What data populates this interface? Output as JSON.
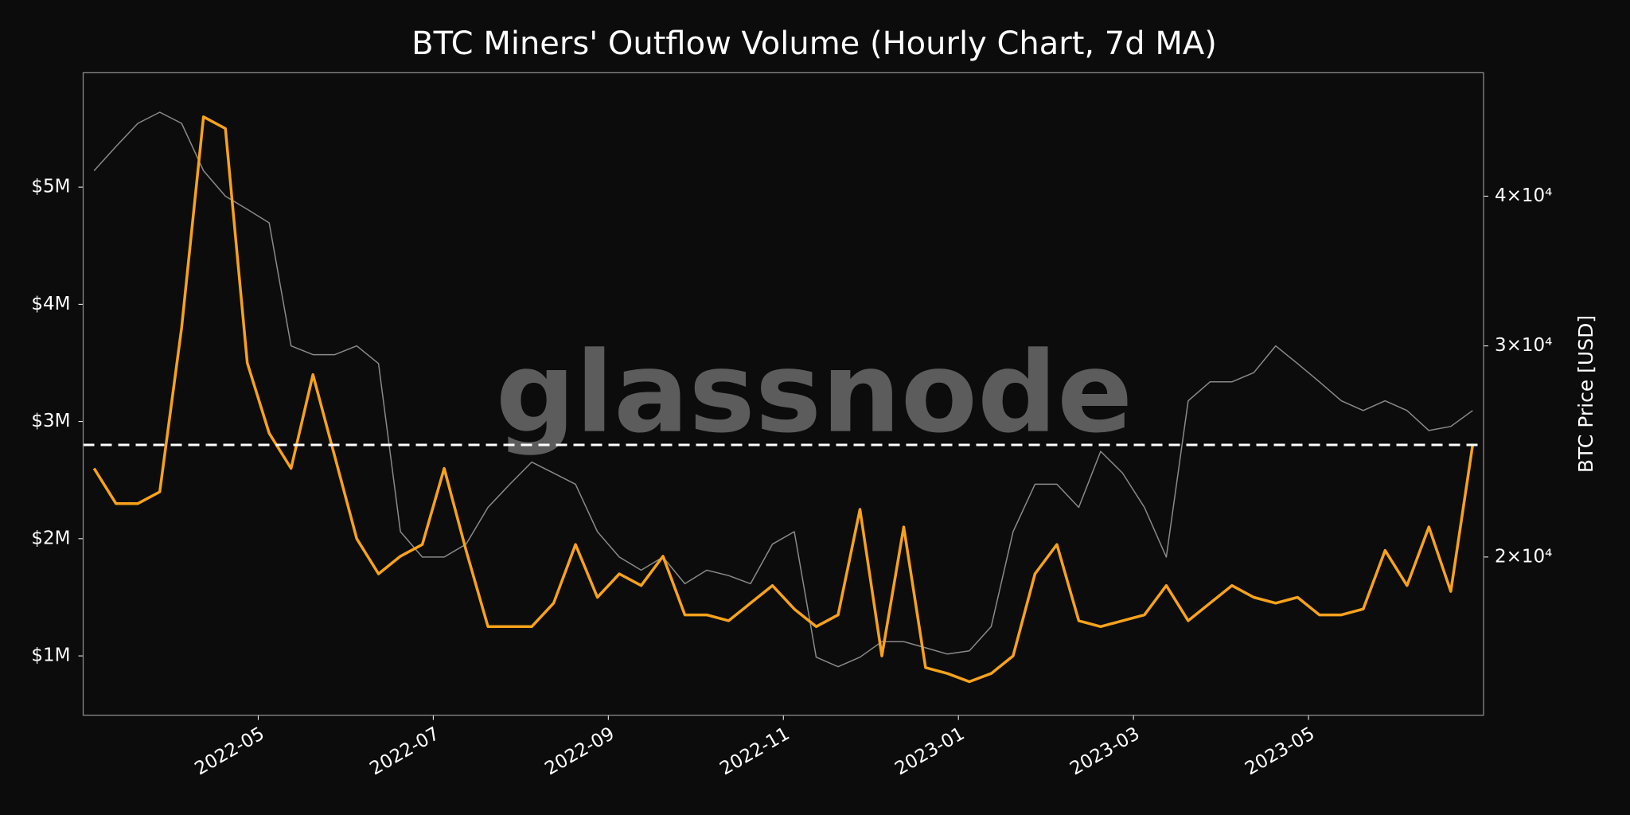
{
  "chart_data": {
    "type": "line",
    "title": "BTC Miners' Outflow Volume (Hourly Chart, 7d MA)",
    "y2label": "BTC Price [USD]",
    "watermark": "glassnode",
    "x": [
      "2022-03",
      "2022-03",
      "2022-03",
      "2022-03",
      "2022-04",
      "2022-04",
      "2022-04",
      "2022-04",
      "2022-05",
      "2022-05",
      "2022-05",
      "2022-05",
      "2022-06",
      "2022-06",
      "2022-06",
      "2022-06",
      "2022-07",
      "2022-07",
      "2022-07",
      "2022-07",
      "2022-08",
      "2022-08",
      "2022-08",
      "2022-08",
      "2022-09",
      "2022-09",
      "2022-09",
      "2022-09",
      "2022-10",
      "2022-10",
      "2022-10",
      "2022-10",
      "2022-11",
      "2022-11",
      "2022-11",
      "2022-11",
      "2022-12",
      "2022-12",
      "2022-12",
      "2022-12",
      "2023-01",
      "2023-01",
      "2023-01",
      "2023-01",
      "2023-02",
      "2023-02",
      "2023-02",
      "2023-02",
      "2023-03",
      "2023-03",
      "2023-03",
      "2023-03",
      "2023-04",
      "2023-04",
      "2023-04",
      "2023-04",
      "2023-05",
      "2023-05",
      "2023-05",
      "2023-05",
      "2023-06",
      "2023-06",
      "2023-06",
      "2023-06"
    ],
    "xlim": [
      "2022-03",
      "2023-06"
    ],
    "xticks": [
      "2022-05",
      "2022-07",
      "2022-09",
      "2022-11",
      "2023-01",
      "2023-03",
      "2023-05"
    ],
    "ylim": [
      494000,
      5976000
    ],
    "yticks": [
      {
        "value": 1000000,
        "label": "$1M"
      },
      {
        "value": 2000000,
        "label": "$2M"
      },
      {
        "value": 3000000,
        "label": "$3M"
      },
      {
        "value": 4000000,
        "label": "$4M"
      },
      {
        "value": 5000000,
        "label": "$5M"
      }
    ],
    "y2lim": [
      14760,
      50700
    ],
    "y2log": true,
    "y2ticks": [
      {
        "value": 20000,
        "label": "2×10⁴"
      },
      {
        "value": 30000,
        "label": "3×10⁴"
      },
      {
        "value": 40000,
        "label": "4×10⁴"
      }
    ],
    "threshold": 2800000,
    "series": [
      {
        "name": "Miners' Outflow Volume",
        "color": "#f7a21b",
        "axis": "y",
        "values": [
          2600000,
          2300000,
          2300000,
          2400000,
          3800000,
          5600000,
          5500000,
          3500000,
          2900000,
          2600000,
          3400000,
          2700000,
          2000000,
          1700000,
          1850000,
          1950000,
          2600000,
          1900000,
          1250000,
          1250000,
          1250000,
          1450000,
          1950000,
          1500000,
          1700000,
          1600000,
          1850000,
          1350000,
          1350000,
          1300000,
          1450000,
          1600000,
          1400000,
          1250000,
          1350000,
          2250000,
          1000000,
          2100000,
          900000,
          850000,
          780000,
          850000,
          1000000,
          1700000,
          1950000,
          1300000,
          1250000,
          1300000,
          1350000,
          1600000,
          1300000,
          1450000,
          1600000,
          1500000,
          1450000,
          1500000,
          1350000,
          1350000,
          1400000,
          1900000,
          1600000,
          2100000,
          1550000,
          2800000
        ]
      },
      {
        "name": "BTC Price",
        "color": "#8a8a8a",
        "axis": "y2",
        "values": [
          42000,
          44000,
          46000,
          47000,
          46000,
          42000,
          40000,
          39000,
          38000,
          30000,
          29500,
          29500,
          30000,
          29000,
          21000,
          20000,
          20000,
          20500,
          22000,
          23000,
          24000,
          23500,
          23000,
          21000,
          20000,
          19500,
          20000,
          19000,
          19500,
          19300,
          19000,
          20500,
          21000,
          16500,
          16200,
          16500,
          17000,
          17000,
          16800,
          16600,
          16700,
          17500,
          21000,
          23000,
          23000,
          22000,
          24500,
          23500,
          22000,
          20000,
          27000,
          28000,
          28000,
          28500,
          30000,
          29000,
          28000,
          27000,
          26500,
          27000,
          26500,
          25500,
          25700,
          26500
        ]
      }
    ]
  }
}
